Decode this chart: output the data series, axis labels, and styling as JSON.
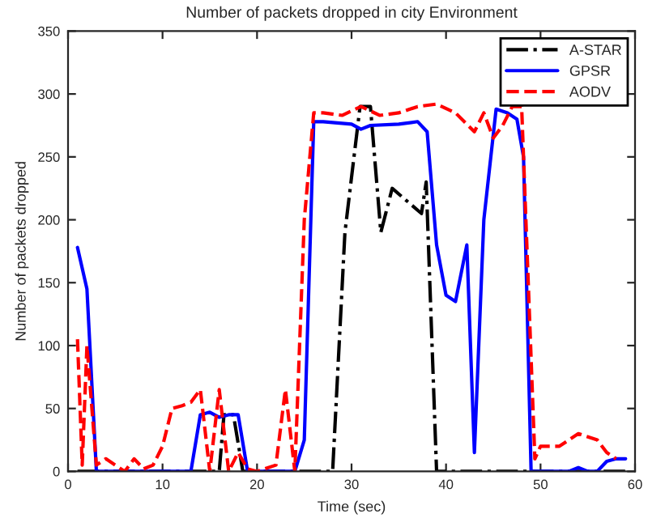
{
  "chart_data": {
    "type": "line",
    "title": "Number of packets dropped in city Environment",
    "xlabel": "Time (sec)",
    "ylabel": "Number of packets dropped",
    "xlim": [
      0,
      60
    ],
    "ylim": [
      0,
      350
    ],
    "xticks": [
      0,
      10,
      20,
      30,
      40,
      50,
      60
    ],
    "yticks": [
      0,
      50,
      100,
      150,
      200,
      250,
      300,
      350
    ],
    "grid": false,
    "legend": "top right",
    "series": [
      {
        "name": "A-STAR",
        "color": "#000000",
        "line_style": "dashdot",
        "x": [
          1,
          5,
          10,
          15,
          16,
          16.5,
          17.5,
          18.5,
          19,
          25,
          28,
          29.3,
          30.9,
          32,
          33.1,
          34.3,
          37.4,
          37.9,
          39,
          45,
          50,
          55,
          59
        ],
        "values": [
          0,
          0,
          0,
          0,
          0,
          45,
          45,
          0,
          0,
          0,
          0,
          190,
          290,
          290,
          190,
          225,
          205,
          230,
          0,
          0,
          0,
          0,
          0
        ]
      },
      {
        "name": "GPSR",
        "color": "#0000ff",
        "line_style": "solid",
        "x": [
          1,
          2,
          3,
          5,
          10,
          13,
          14,
          15,
          16,
          17,
          18,
          19,
          24,
          25,
          26,
          27,
          30,
          31,
          32,
          35,
          37,
          38,
          39,
          40,
          41,
          42.2,
          43,
          44,
          45.3,
          46.5,
          47.5,
          48.2,
          49,
          53,
          54,
          55,
          56,
          57,
          58,
          59
        ],
        "values": [
          178,
          145,
          0,
          0,
          0,
          0,
          45,
          47,
          43,
          45,
          45,
          0,
          0,
          25,
          278,
          278,
          276,
          272,
          275,
          276,
          278,
          270,
          180,
          140,
          135,
          180,
          15,
          200,
          288,
          285,
          280,
          250,
          0,
          0,
          3,
          0,
          0,
          8,
          10,
          10
        ]
      },
      {
        "name": "AODV",
        "color": "#ff0000",
        "line_style": "dashed",
        "x": [
          1,
          1.5,
          2,
          3,
          4,
          5,
          6,
          7,
          8,
          9,
          10,
          11,
          12,
          13,
          14,
          15,
          16,
          17,
          18,
          19,
          20,
          22,
          23,
          24,
          25,
          26,
          27,
          29,
          31,
          33,
          35,
          37,
          39,
          41,
          43,
          44,
          45,
          46,
          47,
          48,
          49.4,
          50,
          52,
          54,
          56,
          57,
          58
        ],
        "values": [
          105,
          5,
          100,
          5,
          10,
          5,
          0,
          10,
          2,
          5,
          20,
          50,
          52,
          55,
          65,
          0,
          65,
          0,
          15,
          2,
          0,
          5,
          65,
          0,
          200,
          285,
          285,
          283,
          290,
          283,
          285,
          290,
          292,
          285,
          270,
          285,
          265,
          275,
          290,
          290,
          10,
          20,
          20,
          30,
          25,
          15,
          10
        ]
      }
    ]
  }
}
